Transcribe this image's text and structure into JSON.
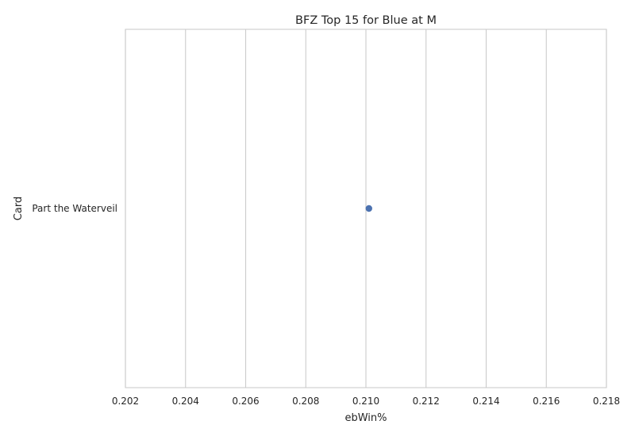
{
  "chart_data": {
    "type": "scatter",
    "title": "BFZ Top 15 for Blue at M",
    "xlabel": "ebWin%",
    "ylabel": "Card",
    "xlim": [
      0.202,
      0.218
    ],
    "xticks": [
      "0.202",
      "0.204",
      "0.206",
      "0.208",
      "0.210",
      "0.212",
      "0.214",
      "0.216",
      "0.218"
    ],
    "grid": true,
    "categories": [
      "Part the Waterveil"
    ],
    "series": [
      {
        "values": [
          0.2101
        ],
        "color": "#4c72b0"
      }
    ]
  }
}
